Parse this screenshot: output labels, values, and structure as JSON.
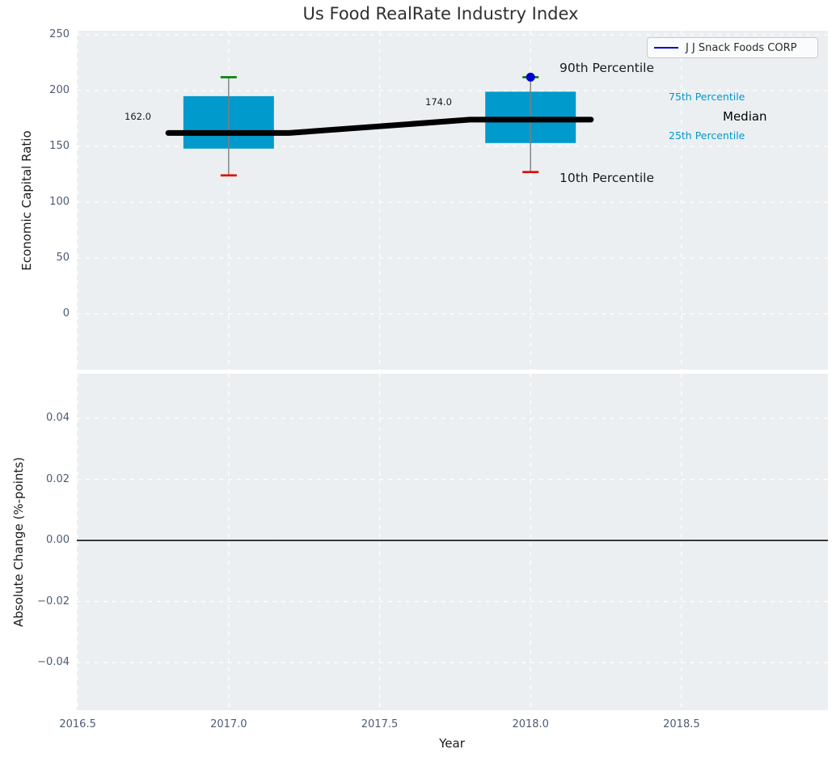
{
  "figure": {
    "title": "Us Food RealRate Industry Index"
  },
  "legend": {
    "series_label": "J J Snack Foods CORP"
  },
  "annotations": {
    "p90": "90th Percentile",
    "p10": "10th Percentile",
    "p75": "75th Percentile",
    "p25": "25th Percentile",
    "median": "Median"
  },
  "chart_data": {
    "type": "boxplot-timeseries",
    "title": "Us Food RealRate Industry Index",
    "legend_entries": [
      "J J Snack Foods CORP"
    ],
    "colors": {
      "box": "#009ACD",
      "median_line": "#000000",
      "p90_cap": "#008000",
      "p10_cap": "#E50000",
      "whisker": "#7f7f7f",
      "company": "#0000CD",
      "percentile_text": "#009ACD",
      "axes_bg": "#eceff1",
      "grid": "#ffffff",
      "tick_text": "#4c5c74"
    },
    "top_axes": {
      "ylabel": "Economic Capital Ratio",
      "ylim": [
        -50.0,
        253.6
      ],
      "xlim": [
        2016.497,
        2018.985
      ],
      "yticks": {
        "values": [
          0,
          50,
          100,
          150,
          200,
          250
        ],
        "labels": [
          "0",
          "50",
          "100",
          "150",
          "200",
          "250"
        ]
      },
      "xticks": {
        "values": [
          2016.5,
          2017.0,
          2017.5,
          2018.0,
          2018.5
        ],
        "labels": []
      },
      "grid": true,
      "legend_position": "upper right",
      "boxes": [
        {
          "year": 2017,
          "p10": 124,
          "q1": 148,
          "median": 162,
          "q3": 195,
          "p90": 212,
          "label": "162.0"
        },
        {
          "year": 2018,
          "p10": 127,
          "q1": 153,
          "median": 174,
          "q3": 199,
          "p90": 212,
          "label": "174.0"
        }
      ],
      "box_halfwidth_years": 0.15,
      "median_trend_line": [
        [
          2016.8,
          162
        ],
        [
          2017.2,
          162
        ],
        [
          2017.8,
          174
        ],
        [
          2018.2,
          174
        ]
      ],
      "company_series": {
        "name": "J J Snack Foods CORP",
        "points": [
          {
            "x": 2018,
            "y": 212
          }
        ]
      }
    },
    "bottom_axes": {
      "ylabel": "Absolute Change (%-points)",
      "xlabel": "Year",
      "ylim": [
        -0.0556,
        0.0546
      ],
      "xlim": [
        2016.497,
        2018.985
      ],
      "yticks": {
        "values": [
          0.04,
          0.02,
          0.0,
          -0.02,
          -0.04
        ],
        "labels": [
          "0.04",
          "0.02",
          "0.00",
          "−0.02",
          "−0.04"
        ]
      },
      "xticks": {
        "values": [
          2016.5,
          2017.0,
          2017.5,
          2018.0,
          2018.5
        ],
        "labels": [
          "2016.5",
          "2017.0",
          "2017.5",
          "2018.0",
          "2018.5"
        ]
      },
      "grid": true,
      "zero_line": 0.0,
      "series": []
    }
  }
}
